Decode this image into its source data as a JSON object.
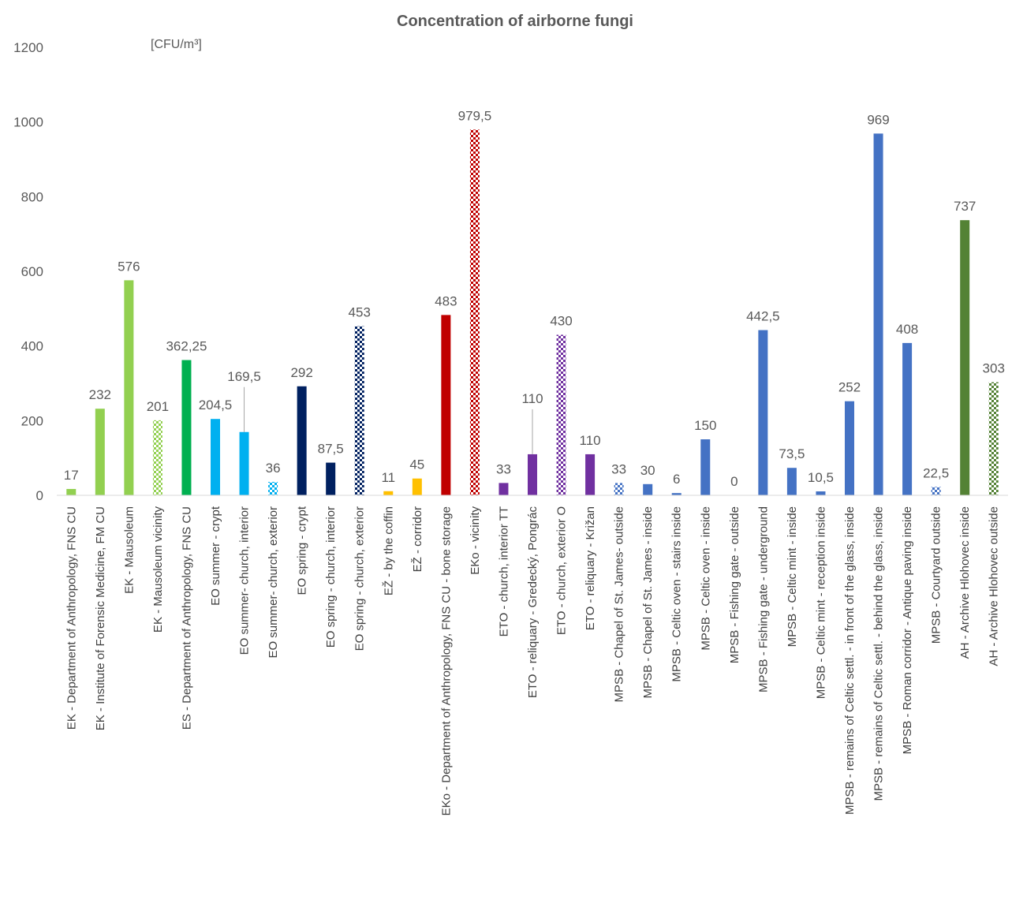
{
  "chart_data": {
    "type": "bar",
    "title": "Concentration of airborne fungi",
    "unit_label": "[CFU/m³]",
    "ylim": [
      0,
      1200
    ],
    "yticks": [
      0,
      200,
      400,
      600,
      800,
      1000,
      1200
    ],
    "grid": false,
    "legend": "none",
    "categories": [
      "EK - Department of Anthropology, FNS CU",
      "EK - Institute of Forensic Medicine, FM CU",
      "EK - Mausoleum",
      "EK - Mausoleum vicinity",
      "ES - Department of Anthropology, FNS CU",
      "EO summer - crypt",
      "EO summer- church, interior",
      "EO summer- church, exterior",
      "EO spring - crypt",
      "EO spring - church, interior",
      "EO spring - church, exterior",
      "EŽ - by the coffin",
      "EŽ - corridor",
      "EKo - Department of Anthropology, FNS CU - bone storage",
      "EKo - vicinity",
      "ETO - church, interior TT",
      "ETO - reliquary - Gredecký, Pongrác",
      "ETO - church, exterior O",
      "ETO - reliquary - Križan",
      "MPSB - Chapel of St. James- outside",
      "MPSB - Chapel of St. James - inside",
      "MPSB - Celtic oven - stairs inside",
      "MPSB - Celtic oven - inside",
      "MPSB - Fishing gate - outside",
      "MPSB - Fishing gate - underground",
      "MPSB - Celtic mint - inside",
      "MPSB - Celtic mint - reception inside",
      "MPSB - remains of Celtic settl. - in front of the glass, inside",
      "MPSB - remains of Celtic settl. - behind the glass, inside",
      "MPSB - Roman corridor - Antique paving inside",
      "MPSB - Courtyard outside",
      "AH - Archive Hlohovec inside",
      "AH - Archive Hlohovec outside"
    ],
    "values": [
      17,
      232,
      576,
      201,
      362.25,
      204.5,
      169.5,
      36,
      292,
      87.5,
      453,
      11,
      45,
      483,
      979.5,
      33,
      110,
      430,
      110,
      33,
      30,
      6,
      150,
      0,
      442.5,
      73.5,
      10.5,
      252,
      969,
      408,
      22.5,
      737,
      303
    ],
    "value_labels": [
      "17",
      "232",
      "576",
      "201",
      "362,25",
      "204,5",
      "169,5",
      "36",
      "292",
      "87,5",
      "453",
      "11",
      "45",
      "483",
      "979,5",
      "33",
      "110",
      "430",
      "110",
      "33",
      "30",
      "6",
      "150",
      "0",
      "442,5",
      "73,5",
      "10,5",
      "252",
      "969",
      "408",
      "22,5",
      "737",
      "303"
    ],
    "colors": [
      "#92d050",
      "#92d050",
      "#92d050",
      "#92d050",
      "#00b050",
      "#00b0f0",
      "#00b0f0",
      "#00b0f0",
      "#002060",
      "#002060",
      "#002060",
      "#ffc000",
      "#ffc000",
      "#c00000",
      "#c00000",
      "#7030a0",
      "#7030a0",
      "#7030a0",
      "#7030a0",
      "#4472c4",
      "#4472c4",
      "#4472c4",
      "#4472c4",
      "#4472c4",
      "#4472c4",
      "#4472c4",
      "#4472c4",
      "#4472c4",
      "#4472c4",
      "#4472c4",
      "#4472c4",
      "#548235",
      "#548235"
    ],
    "patterned": [
      false,
      false,
      false,
      true,
      false,
      false,
      false,
      true,
      false,
      false,
      true,
      false,
      false,
      false,
      true,
      false,
      false,
      true,
      false,
      true,
      false,
      false,
      false,
      false,
      false,
      false,
      false,
      false,
      false,
      false,
      true,
      false,
      true
    ],
    "raised_labels": [
      false,
      false,
      false,
      false,
      false,
      false,
      true,
      false,
      false,
      false,
      false,
      false,
      false,
      false,
      false,
      false,
      true,
      false,
      false,
      false,
      false,
      false,
      false,
      false,
      false,
      false,
      false,
      false,
      false,
      false,
      false,
      false,
      false
    ]
  }
}
